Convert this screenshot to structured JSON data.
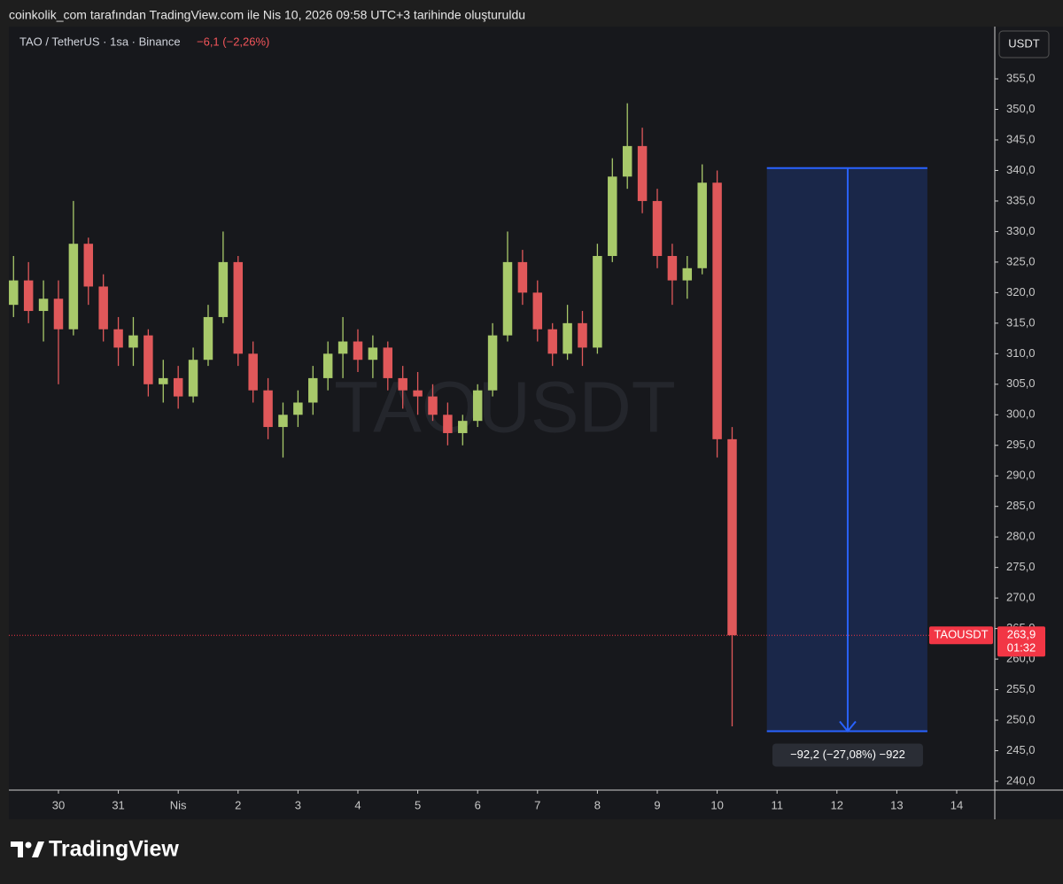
{
  "header": {
    "text": "coinkolik_com tarafından TradingView.com ile Nis 10, 2026 09:58 UTC+3 tarihinde oluşturuldu"
  },
  "footer": {
    "brand": "TradingView"
  },
  "chart_data": {
    "type": "candlestick",
    "title": "TAO / TetherUS · 1sa · Binance",
    "change": "−6,1 (−2,26%)",
    "currency": "USDT",
    "watermark": "TAOUSDT",
    "up_color": "#a8c96a",
    "down_color": "#e0585a",
    "grid": false,
    "x": [
      -0.75,
      -0.5,
      -0.25,
      0,
      0.25,
      0.5,
      0.75,
      1,
      1.25,
      1.5,
      1.75,
      2,
      2.25,
      2.5,
      2.75,
      3,
      3.25,
      3.5,
      3.75,
      4,
      4.25,
      4.5,
      4.75,
      5,
      5.25,
      5.5,
      5.75,
      6,
      6.25,
      6.5,
      6.75,
      7,
      7.25,
      7.5,
      7.75,
      8,
      8.25,
      8.5,
      8.75,
      9,
      9.25,
      9.5,
      9.75,
      10,
      10.25,
      10.5,
      10.75,
      11,
      11.25
    ],
    "open": [
      318,
      322,
      317,
      319,
      314,
      328,
      321,
      314,
      311,
      313,
      305,
      306,
      303,
      309,
      316,
      325,
      310,
      304,
      298,
      300,
      302,
      306,
      310,
      312,
      309,
      311,
      306,
      304,
      303,
      300,
      297,
      299,
      304,
      313,
      325,
      320,
      314,
      310,
      315,
      311,
      326,
      339,
      344,
      335,
      326,
      322,
      324,
      338,
      296
    ],
    "high": [
      326,
      325,
      322,
      322,
      335,
      329,
      323,
      316,
      316,
      314,
      309,
      308,
      311,
      318,
      330,
      326,
      312,
      306,
      302,
      304,
      308,
      312,
      316,
      314,
      313,
      312,
      308,
      307,
      305,
      302,
      300,
      305,
      315,
      330,
      327,
      322,
      315,
      318,
      317,
      328,
      342,
      351,
      347,
      337,
      328,
      326,
      341,
      340,
      298
    ],
    "low": [
      316,
      315,
      312,
      305,
      313,
      318,
      312,
      308,
      308,
      303,
      302,
      301,
      302,
      308,
      315,
      308,
      302,
      296,
      293,
      298,
      300,
      304,
      306,
      307,
      306,
      304,
      301,
      300,
      299,
      295,
      295,
      298,
      303,
      312,
      318,
      312,
      308,
      309,
      308,
      310,
      325,
      337,
      333,
      324,
      318,
      319,
      323,
      293,
      249
    ],
    "close": [
      322,
      317,
      319,
      314,
      328,
      321,
      314,
      311,
      313,
      305,
      306,
      303,
      309,
      316,
      325,
      310,
      304,
      298,
      300,
      302,
      306,
      310,
      312,
      309,
      311,
      306,
      304,
      303,
      300,
      297,
      299,
      304,
      313,
      325,
      320,
      314,
      310,
      315,
      311,
      326,
      339,
      344,
      335,
      326,
      322,
      324,
      338,
      296,
      263.9
    ],
    "xlim": [
      -0.828,
      15.636
    ],
    "xticks": [
      {
        "value": 0,
        "label": "30"
      },
      {
        "value": 1,
        "label": "31"
      },
      {
        "value": 2,
        "label": "Nis"
      },
      {
        "value": 3,
        "label": "2"
      },
      {
        "value": 4,
        "label": "3"
      },
      {
        "value": 5,
        "label": "4"
      },
      {
        "value": 6,
        "label": "5"
      },
      {
        "value": 7,
        "label": "6"
      },
      {
        "value": 8,
        "label": "7"
      },
      {
        "value": 9,
        "label": "8"
      },
      {
        "value": 10,
        "label": "9"
      },
      {
        "value": 11,
        "label": "10"
      },
      {
        "value": 12,
        "label": "11"
      },
      {
        "value": 13,
        "label": "12"
      },
      {
        "value": 14,
        "label": "13"
      },
      {
        "value": 15,
        "label": "14"
      }
    ],
    "ylim": [
      238.55,
      363.56
    ],
    "yticks": [
      {
        "value": 240,
        "label": "240,0"
      },
      {
        "value": 245,
        "label": "245,0"
      },
      {
        "value": 250,
        "label": "250,0"
      },
      {
        "value": 255,
        "label": "255,0"
      },
      {
        "value": 260,
        "label": "260,0"
      },
      {
        "value": 265,
        "label": "265,0"
      },
      {
        "value": 270,
        "label": "270,0"
      },
      {
        "value": 275,
        "label": "275,0"
      },
      {
        "value": 280,
        "label": "280,0"
      },
      {
        "value": 285,
        "label": "285,0"
      },
      {
        "value": 290,
        "label": "290,0"
      },
      {
        "value": 295,
        "label": "295,0"
      },
      {
        "value": 300,
        "label": "300,0"
      },
      {
        "value": 305,
        "label": "305,0"
      },
      {
        "value": 310,
        "label": "310,0"
      },
      {
        "value": 315,
        "label": "315,0"
      },
      {
        "value": 320,
        "label": "320,0"
      },
      {
        "value": 325,
        "label": "325,0"
      },
      {
        "value": 330,
        "label": "330,0"
      },
      {
        "value": 335,
        "label": "335,0"
      },
      {
        "value": 340,
        "label": "340,0"
      },
      {
        "value": 345,
        "label": "345,0"
      },
      {
        "value": 350,
        "label": "350,0"
      },
      {
        "value": 355,
        "label": "355,0"
      }
    ],
    "last_price": {
      "value": 263.9,
      "label": "263,9",
      "symbol": "TAOUSDT",
      "countdown": "01:32",
      "color": "#f23645"
    },
    "measure": {
      "x": [
        11.83,
        14.51
      ],
      "arrow_x": 13.18,
      "y": [
        340.4,
        248.2
      ],
      "label": "−92,2 (−27,08%) −922",
      "color": "#2962ff"
    }
  }
}
